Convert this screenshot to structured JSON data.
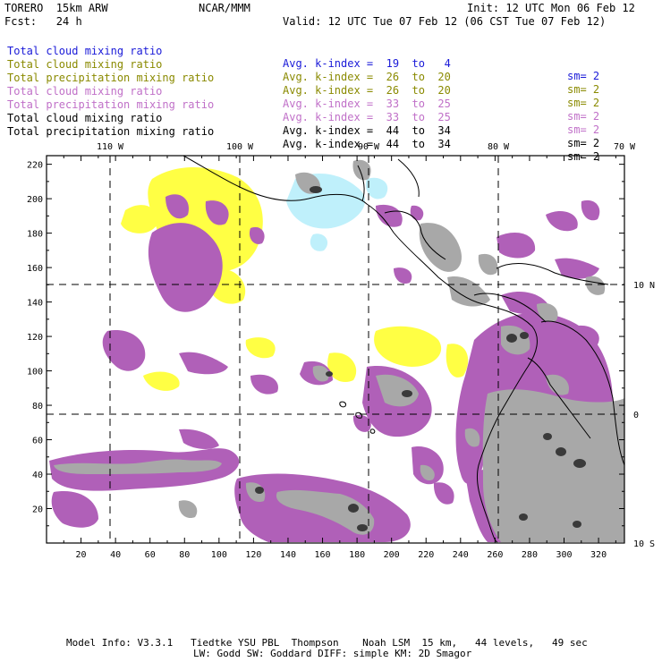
{
  "header": {
    "title_left": "TORERO  15km ARW",
    "center": "NCAR/MMM",
    "init": "Init: 12 UTC Mon 06 Feb 12",
    "fcst": "Fcst:   24 h",
    "valid": "Valid: 12 UTC Tue 07 Feb 12 (06 CST Tue 07 Feb 12)"
  },
  "fields": [
    {
      "name": "Total cloud mixing ratio",
      "kindex": "Avg. k-index =  19  to   4",
      "sm": "sm= 2",
      "color": "#1a1ad8"
    },
    {
      "name": "Total cloud mixing ratio",
      "kindex": "Avg. k-index =  26  to  20",
      "sm": "sm= 2",
      "color": "#8a8a00"
    },
    {
      "name": "Total precipitation mixing ratio",
      "kindex": "Avg. k-index =  26  to  20",
      "sm": "sm= 2",
      "color": "#8a8a00"
    },
    {
      "name": "Total cloud mixing ratio",
      "kindex": "Avg. k-index =  33  to  25",
      "sm": "sm= 2",
      "color": "#c070c8"
    },
    {
      "name": "Total precipitation mixing ratio",
      "kindex": "Avg. k-index =  33  to  25",
      "sm": "sm= 2",
      "color": "#c070c8"
    },
    {
      "name": "Total cloud mixing ratio",
      "kindex": "Avg. k-index =  44  to  34",
      "sm": "sm= 2",
      "color": "#000000"
    },
    {
      "name": "Total precipitation mixing ratio",
      "kindex": "Avg. k-index =  44  to  34",
      "sm": "sm= 2",
      "color": "#000000"
    }
  ],
  "map": {
    "x_ticks": [
      "20",
      "40",
      "60",
      "80",
      "100",
      "120",
      "140",
      "160",
      "180",
      "200",
      "220",
      "240",
      "260",
      "280",
      "300",
      "320"
    ],
    "y_ticks": [
      "20",
      "40",
      "60",
      "80",
      "100",
      "120",
      "140",
      "160",
      "180",
      "200",
      "220"
    ],
    "x_range": [
      0,
      335
    ],
    "y_range": [
      0,
      225
    ],
    "lon_labels": [
      "110 W",
      "100 W",
      "90 W",
      "80 W",
      "70 W"
    ],
    "lat_labels": [
      "10 N",
      "0",
      "10 S"
    ],
    "colors": {
      "light_blue": "#bff0fb",
      "yellow": "#ffff44",
      "purple": "#b060b8",
      "gray": "#a8a8a8",
      "dark_gray": "#3a3a3a"
    }
  },
  "footer": {
    "line1": "Model Info: V3.3.1   Tiedtke YSU PBL  Thompson    Noah LSM  15 km,   44 levels,   49 sec",
    "line2": "LW: Godd SW: Goddard DIFF: simple KM: 2D Smagor"
  }
}
